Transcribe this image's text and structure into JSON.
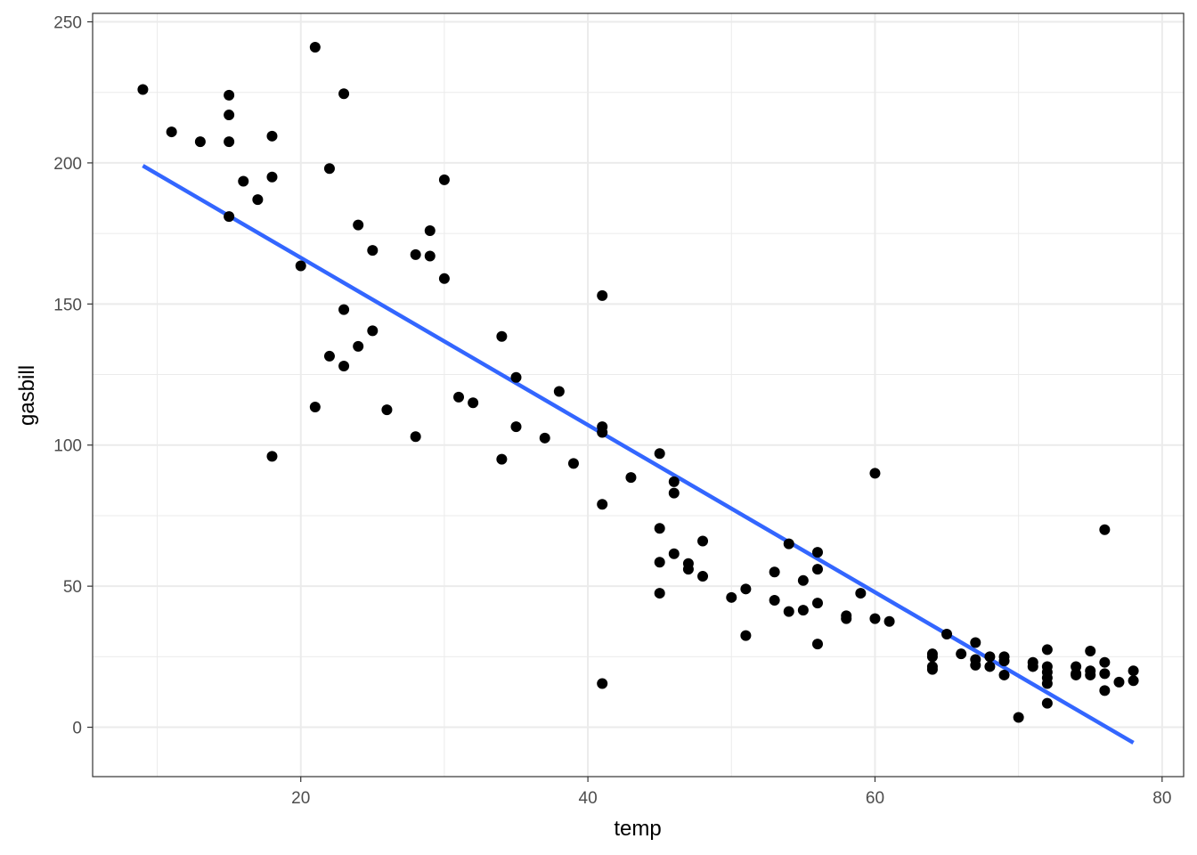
{
  "chart_data": {
    "type": "scatter",
    "xlabel": "temp",
    "ylabel": "gasbill",
    "xlim": [
      5.5,
      81.5
    ],
    "ylim": [
      -17.5,
      253
    ],
    "x_ticks": [
      20,
      40,
      60,
      80
    ],
    "x_tick_labels": [
      "20",
      "40",
      "60",
      "80"
    ],
    "x_minor_ticks": [
      10,
      30,
      50,
      70
    ],
    "y_ticks": [
      0,
      50,
      100,
      150,
      200,
      250
    ],
    "y_tick_labels": [
      "0",
      "50",
      "100",
      "150",
      "200",
      "250"
    ],
    "y_minor_ticks": [
      25,
      75,
      125,
      175,
      225
    ],
    "grid": true,
    "point_color": "#000000",
    "fit_line_color": "#3366FF",
    "panel_border_color": "#333333",
    "grid_color": "#ebebeb",
    "points": [
      [
        9,
        226
      ],
      [
        11,
        211
      ],
      [
        13,
        207.5
      ],
      [
        15,
        224
      ],
      [
        15,
        217
      ],
      [
        15,
        207.5
      ],
      [
        15,
        181
      ],
      [
        16,
        193.5
      ],
      [
        17,
        187
      ],
      [
        18,
        209.5
      ],
      [
        18,
        195
      ],
      [
        18,
        96
      ],
      [
        20,
        163.5
      ],
      [
        21,
        241
      ],
      [
        21,
        113.5
      ],
      [
        22,
        198
      ],
      [
        22,
        131.5
      ],
      [
        23,
        224.5
      ],
      [
        23,
        148
      ],
      [
        23,
        128
      ],
      [
        24,
        178
      ],
      [
        24,
        135
      ],
      [
        25,
        169
      ],
      [
        25,
        140.5
      ],
      [
        26,
        112.5
      ],
      [
        28,
        167.5
      ],
      [
        28,
        103
      ],
      [
        29,
        176
      ],
      [
        29,
        167
      ],
      [
        30,
        194
      ],
      [
        30,
        159
      ],
      [
        31,
        117
      ],
      [
        32,
        115
      ],
      [
        34,
        138.5
      ],
      [
        34,
        95
      ],
      [
        35,
        124
      ],
      [
        35,
        106.5
      ],
      [
        37,
        102.5
      ],
      [
        38,
        119
      ],
      [
        39,
        93.5
      ],
      [
        41,
        153
      ],
      [
        41,
        106.5
      ],
      [
        41,
        104.5
      ],
      [
        41,
        79
      ],
      [
        41,
        15.5
      ],
      [
        43,
        88.5
      ],
      [
        45,
        97
      ],
      [
        45,
        70.5
      ],
      [
        45,
        58.5
      ],
      [
        45,
        47.5
      ],
      [
        46,
        87
      ],
      [
        46,
        83
      ],
      [
        46,
        61.5
      ],
      [
        47,
        58
      ],
      [
        47,
        56
      ],
      [
        48,
        66
      ],
      [
        48,
        53.5
      ],
      [
        50,
        46
      ],
      [
        51,
        49
      ],
      [
        51,
        32.5
      ],
      [
        53,
        55
      ],
      [
        53,
        45
      ],
      [
        54,
        65
      ],
      [
        54,
        41
      ],
      [
        55,
        52
      ],
      [
        55,
        41.5
      ],
      [
        56,
        62
      ],
      [
        56,
        56
      ],
      [
        56,
        44
      ],
      [
        56,
        29.5
      ],
      [
        58,
        39.5
      ],
      [
        58,
        38.5
      ],
      [
        59,
        47.5
      ],
      [
        60,
        90
      ],
      [
        60,
        38.5
      ],
      [
        61,
        37.5
      ],
      [
        64,
        26
      ],
      [
        64,
        25
      ],
      [
        64,
        21.5
      ],
      [
        64,
        20.5
      ],
      [
        65,
        33
      ],
      [
        66,
        26
      ],
      [
        67,
        30
      ],
      [
        67,
        24
      ],
      [
        67,
        22
      ],
      [
        68,
        25
      ],
      [
        68,
        21.5
      ],
      [
        69,
        25
      ],
      [
        69,
        23.5
      ],
      [
        69,
        18.5
      ],
      [
        70,
        3.5
      ],
      [
        71,
        23
      ],
      [
        71,
        21.5
      ],
      [
        72,
        27.5
      ],
      [
        72,
        21.5
      ],
      [
        72,
        19.5
      ],
      [
        72,
        17.5
      ],
      [
        72,
        15.5
      ],
      [
        72,
        8.5
      ],
      [
        74,
        21.5
      ],
      [
        74,
        19
      ],
      [
        74,
        18.5
      ],
      [
        75,
        27
      ],
      [
        75,
        20
      ],
      [
        75,
        18.5
      ],
      [
        76,
        70
      ],
      [
        76,
        23
      ],
      [
        76,
        19
      ],
      [
        76,
        13
      ],
      [
        77,
        16
      ],
      [
        78,
        20
      ],
      [
        78,
        16.5
      ]
    ],
    "fit_line": {
      "x": [
        9,
        78
      ],
      "y": [
        199,
        -5.5
      ]
    }
  }
}
